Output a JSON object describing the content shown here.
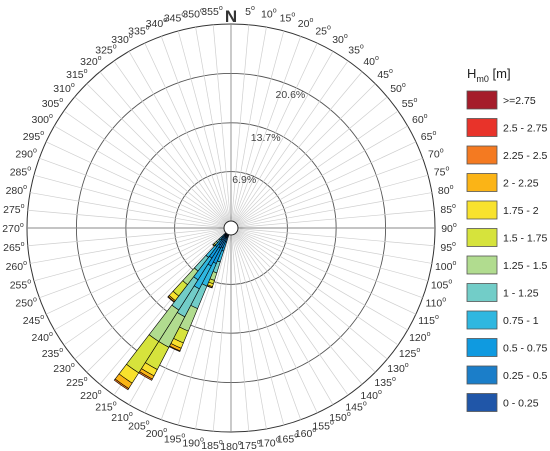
{
  "chart_data": {
    "type": "wind-rose",
    "north_label": "N",
    "direction_ticks": [
      {
        "deg": 0,
        "label": "0"
      },
      {
        "deg": 5,
        "label": "5"
      },
      {
        "deg": 10,
        "label": "10"
      },
      {
        "deg": 15,
        "label": "15"
      },
      {
        "deg": 20,
        "label": "20"
      },
      {
        "deg": 25,
        "label": "25"
      },
      {
        "deg": 30,
        "label": "30"
      },
      {
        "deg": 35,
        "label": "35"
      },
      {
        "deg": 40,
        "label": "40"
      },
      {
        "deg": 45,
        "label": "45"
      },
      {
        "deg": 50,
        "label": "50"
      },
      {
        "deg": 55,
        "label": "55"
      },
      {
        "deg": 60,
        "label": "60"
      },
      {
        "deg": 65,
        "label": "65"
      },
      {
        "deg": 70,
        "label": "70"
      },
      {
        "deg": 75,
        "label": "75"
      },
      {
        "deg": 80,
        "label": "80"
      },
      {
        "deg": 85,
        "label": "85"
      },
      {
        "deg": 90,
        "label": "90"
      },
      {
        "deg": 95,
        "label": "95"
      },
      {
        "deg": 100,
        "label": "100"
      },
      {
        "deg": 105,
        "label": "105"
      },
      {
        "deg": 110,
        "label": "110"
      },
      {
        "deg": 115,
        "label": "115"
      },
      {
        "deg": 120,
        "label": "120"
      },
      {
        "deg": 125,
        "label": "125"
      },
      {
        "deg": 130,
        "label": "130"
      },
      {
        "deg": 135,
        "label": "135"
      },
      {
        "deg": 140,
        "label": "140"
      },
      {
        "deg": 145,
        "label": "145"
      },
      {
        "deg": 150,
        "label": "150"
      },
      {
        "deg": 155,
        "label": "155"
      },
      {
        "deg": 160,
        "label": "160"
      },
      {
        "deg": 165,
        "label": "165"
      },
      {
        "deg": 170,
        "label": "170"
      },
      {
        "deg": 175,
        "label": "175"
      },
      {
        "deg": 180,
        "label": "180"
      },
      {
        "deg": 185,
        "label": "185"
      },
      {
        "deg": 190,
        "label": "190"
      },
      {
        "deg": 195,
        "label": "195"
      },
      {
        "deg": 200,
        "label": "200"
      },
      {
        "deg": 205,
        "label": "205"
      },
      {
        "deg": 210,
        "label": "210"
      },
      {
        "deg": 215,
        "label": "215"
      },
      {
        "deg": 220,
        "label": "220"
      },
      {
        "deg": 225,
        "label": "225"
      },
      {
        "deg": 230,
        "label": "230"
      },
      {
        "deg": 235,
        "label": "235"
      },
      {
        "deg": 240,
        "label": "240"
      },
      {
        "deg": 245,
        "label": "245"
      },
      {
        "deg": 250,
        "label": "250"
      },
      {
        "deg": 255,
        "label": "255"
      },
      {
        "deg": 260,
        "label": "260"
      },
      {
        "deg": 265,
        "label": "265"
      },
      {
        "deg": 270,
        "label": "270"
      },
      {
        "deg": 275,
        "label": "275"
      },
      {
        "deg": 280,
        "label": "280"
      },
      {
        "deg": 285,
        "label": "285"
      },
      {
        "deg": 290,
        "label": "290"
      },
      {
        "deg": 295,
        "label": "295"
      },
      {
        "deg": 300,
        "label": "300"
      },
      {
        "deg": 305,
        "label": "305"
      },
      {
        "deg": 310,
        "label": "310"
      },
      {
        "deg": 315,
        "label": "315"
      },
      {
        "deg": 320,
        "label": "320"
      },
      {
        "deg": 325,
        "label": "325"
      },
      {
        "deg": 330,
        "label": "330"
      },
      {
        "deg": 335,
        "label": "335"
      },
      {
        "deg": 340,
        "label": "340"
      },
      {
        "deg": 345,
        "label": "345"
      },
      {
        "deg": 350,
        "label": "350"
      },
      {
        "deg": 355,
        "label": "355"
      }
    ],
    "degree_symbol": "o",
    "rings": [
      {
        "value": 6.9,
        "label": "6.9%"
      },
      {
        "value": 13.7,
        "label": "13.7%"
      },
      {
        "value": 20.6,
        "label": "20.6%"
      }
    ],
    "radial_max": 27.5,
    "legend": {
      "title_main": "H",
      "title_sub": "m0",
      "title_unit": " [m]",
      "classes": [
        {
          "label": ">=2.75",
          "color": "#a51c2a"
        },
        {
          "label": "2.5 - 2.75",
          "color": "#e8332a"
        },
        {
          "label": "2.25 - 2.5",
          "color": "#f47a21"
        },
        {
          "label": "2 - 2.25",
          "color": "#fbb416"
        },
        {
          "label": "1.75 - 2",
          "color": "#f8e22d"
        },
        {
          "label": "1.5 - 1.75",
          "color": "#d6e33c"
        },
        {
          "label": "1.25 - 1.5",
          "color": "#b1dc8f"
        },
        {
          "label": "1 - 1.25",
          "color": "#72cdc8"
        },
        {
          "label": "0.75 - 1",
          "color": "#2fb7e0"
        },
        {
          "label": "0.5 - 0.75",
          "color": "#0f9ae0"
        },
        {
          "label": "0.25 - 0.5",
          "color": "#1b7ec9"
        },
        {
          "label": "0 - 0.25",
          "color": "#2056a8"
        }
      ]
    },
    "sector_width_deg": 5,
    "sectors": [
      {
        "direction": 200,
        "cumulative": [
          0,
          0.3,
          1.1,
          2.4,
          4.0,
          5.6,
          6.7,
          7.2,
          7.6,
          7.75,
          7.8,
          7.8
        ]
      },
      {
        "direction": 205,
        "cumulative": [
          0,
          0.5,
          2.0,
          4.4,
          7.8,
          11.2,
          14.6,
          16.4,
          17.2,
          17.6,
          17.7,
          17.7
        ]
      },
      {
        "direction": 210,
        "cumulative": [
          0,
          0.5,
          2.2,
          5.0,
          8.6,
          13.0,
          17.8,
          21.3,
          22.3,
          22.8,
          23.0,
          23.0
        ]
      },
      {
        "direction": 215,
        "cumulative": [
          0,
          0.4,
          1.8,
          4.0,
          7.6,
          12.6,
          17.8,
          23.0,
          24.7,
          25.6,
          25.8,
          25.8
        ]
      },
      {
        "direction": 220,
        "cumulative": [
          0,
          0.3,
          1.1,
          2.3,
          4.2,
          6.6,
          9.0,
          11.0,
          11.8,
          12.0,
          12.1,
          12.1
        ]
      },
      {
        "direction": 225,
        "cumulative": [
          0,
          0.1,
          0.4,
          0.8,
          1.3,
          1.8,
          2.2,
          2.4,
          2.5,
          2.5,
          2.5,
          2.5
        ]
      }
    ]
  }
}
